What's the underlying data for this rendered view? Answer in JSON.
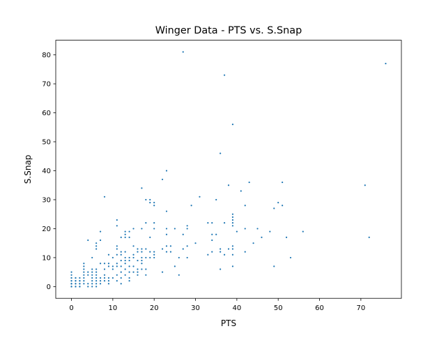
{
  "chart_data": {
    "type": "scatter",
    "title": "Winger Data - PTS vs. S.Snap",
    "xlabel": "PTS",
    "ylabel": "S.Snap",
    "xlim": [
      -3.8,
      79.8
    ],
    "ylim": [
      -4.05,
      85.05
    ],
    "xticks": [
      0,
      10,
      20,
      30,
      40,
      50,
      60,
      70
    ],
    "yticks": [
      0,
      10,
      20,
      30,
      40,
      50,
      60,
      70,
      80
    ],
    "grid": false,
    "marker_color": "#1f77b4",
    "points": [
      [
        0,
        0
      ],
      [
        0,
        0
      ],
      [
        0,
        0
      ],
      [
        0,
        1
      ],
      [
        0,
        1
      ],
      [
        0,
        1
      ],
      [
        0,
        2
      ],
      [
        0,
        2
      ],
      [
        0,
        3
      ],
      [
        0,
        3
      ],
      [
        0,
        4
      ],
      [
        0,
        5
      ],
      [
        1,
        0
      ],
      [
        1,
        0
      ],
      [
        1,
        1
      ],
      [
        1,
        1
      ],
      [
        1,
        2
      ],
      [
        1,
        2
      ],
      [
        1,
        3
      ],
      [
        1,
        3
      ],
      [
        2,
        0
      ],
      [
        2,
        0
      ],
      [
        2,
        1
      ],
      [
        2,
        1
      ],
      [
        2,
        2
      ],
      [
        2,
        2
      ],
      [
        2,
        3
      ],
      [
        3,
        1
      ],
      [
        3,
        2
      ],
      [
        3,
        3
      ],
      [
        3,
        4
      ],
      [
        3,
        5
      ],
      [
        3,
        6
      ],
      [
        3,
        7
      ],
      [
        3,
        8
      ],
      [
        4,
        0
      ],
      [
        4,
        1
      ],
      [
        4,
        4
      ],
      [
        4,
        5
      ],
      [
        4,
        16
      ],
      [
        5,
        0
      ],
      [
        5,
        1
      ],
      [
        5,
        2
      ],
      [
        5,
        3
      ],
      [
        5,
        4
      ],
      [
        5,
        5
      ],
      [
        5,
        6
      ],
      [
        5,
        10
      ],
      [
        6,
        0
      ],
      [
        6,
        1
      ],
      [
        6,
        2
      ],
      [
        6,
        3
      ],
      [
        6,
        4
      ],
      [
        6,
        5
      ],
      [
        6,
        6
      ],
      [
        6,
        13
      ],
      [
        6,
        14
      ],
      [
        6,
        15
      ],
      [
        7,
        1
      ],
      [
        7,
        2
      ],
      [
        7,
        3
      ],
      [
        7,
        8
      ],
      [
        7,
        16
      ],
      [
        7,
        19
      ],
      [
        8,
        2
      ],
      [
        8,
        3
      ],
      [
        8,
        4
      ],
      [
        8,
        6
      ],
      [
        8,
        8
      ],
      [
        8,
        31
      ],
      [
        9,
        1
      ],
      [
        9,
        2
      ],
      [
        9,
        3
      ],
      [
        9,
        7
      ],
      [
        9,
        8
      ],
      [
        9,
        11
      ],
      [
        10,
        3
      ],
      [
        10,
        6
      ],
      [
        10,
        7
      ],
      [
        10,
        10
      ],
      [
        11,
        2
      ],
      [
        11,
        4
      ],
      [
        11,
        7
      ],
      [
        11,
        8
      ],
      [
        11,
        11
      ],
      [
        11,
        13
      ],
      [
        11,
        14
      ],
      [
        11,
        21
      ],
      [
        11,
        23
      ],
      [
        12,
        1
      ],
      [
        12,
        3
      ],
      [
        12,
        5
      ],
      [
        12,
        7
      ],
      [
        12,
        9
      ],
      [
        12,
        11
      ],
      [
        12,
        12
      ],
      [
        12,
        17
      ],
      [
        13,
        4
      ],
      [
        13,
        6
      ],
      [
        13,
        8
      ],
      [
        13,
        9
      ],
      [
        13,
        10
      ],
      [
        13,
        12
      ],
      [
        13,
        17
      ],
      [
        13,
        18
      ],
      [
        13,
        19
      ],
      [
        14,
        2
      ],
      [
        14,
        3
      ],
      [
        14,
        5
      ],
      [
        14,
        7
      ],
      [
        14,
        9
      ],
      [
        14,
        10
      ],
      [
        14,
        17
      ],
      [
        14,
        19
      ],
      [
        15,
        5
      ],
      [
        15,
        7
      ],
      [
        15,
        10
      ],
      [
        15,
        11
      ],
      [
        15,
        14
      ],
      [
        15,
        20
      ],
      [
        16,
        4
      ],
      [
        16,
        5
      ],
      [
        16,
        6
      ],
      [
        16,
        9
      ],
      [
        16,
        12
      ],
      [
        16,
        13
      ],
      [
        17,
        6
      ],
      [
        17,
        8
      ],
      [
        17,
        9
      ],
      [
        17,
        10
      ],
      [
        17,
        12
      ],
      [
        17,
        13
      ],
      [
        17,
        20
      ],
      [
        17,
        34
      ],
      [
        18,
        4
      ],
      [
        18,
        6
      ],
      [
        18,
        10
      ],
      [
        18,
        13
      ],
      [
        18,
        22
      ],
      [
        18,
        30
      ],
      [
        19,
        10
      ],
      [
        19,
        12
      ],
      [
        19,
        17
      ],
      [
        19,
        29
      ],
      [
        19,
        30
      ],
      [
        20,
        10
      ],
      [
        20,
        11
      ],
      [
        20,
        12
      ],
      [
        20,
        20
      ],
      [
        20,
        22
      ],
      [
        20,
        28
      ],
      [
        20,
        29
      ],
      [
        22,
        5
      ],
      [
        22,
        13
      ],
      [
        22,
        37
      ],
      [
        23,
        12
      ],
      [
        23,
        14
      ],
      [
        23,
        18
      ],
      [
        23,
        20
      ],
      [
        23,
        26
      ],
      [
        23,
        40
      ],
      [
        24,
        12
      ],
      [
        24,
        14
      ],
      [
        25,
        7
      ],
      [
        25,
        20
      ],
      [
        26,
        4
      ],
      [
        26,
        10
      ],
      [
        27,
        81
      ],
      [
        27,
        13
      ],
      [
        27,
        18
      ],
      [
        28,
        10
      ],
      [
        28,
        14
      ],
      [
        28,
        20
      ],
      [
        28,
        21
      ],
      [
        29,
        28
      ],
      [
        30,
        15
      ],
      [
        31,
        31
      ],
      [
        33,
        11
      ],
      [
        33,
        22
      ],
      [
        34,
        12
      ],
      [
        34,
        16
      ],
      [
        34,
        18
      ],
      [
        34,
        22
      ],
      [
        35,
        18
      ],
      [
        35,
        30
      ],
      [
        36,
        6
      ],
      [
        36,
        12
      ],
      [
        36,
        13
      ],
      [
        36,
        46
      ],
      [
        37,
        11
      ],
      [
        37,
        22
      ],
      [
        37,
        73
      ],
      [
        38,
        13
      ],
      [
        38,
        35
      ],
      [
        39,
        7
      ],
      [
        39,
        11
      ],
      [
        39,
        13
      ],
      [
        39,
        14
      ],
      [
        39,
        21
      ],
      [
        39,
        22
      ],
      [
        39,
        23
      ],
      [
        39,
        24
      ],
      [
        39,
        25
      ],
      [
        39,
        56
      ],
      [
        40,
        19
      ],
      [
        41,
        33
      ],
      [
        42,
        28
      ],
      [
        42,
        20
      ],
      [
        42,
        12
      ],
      [
        43,
        36
      ],
      [
        44,
        15
      ],
      [
        45,
        20
      ],
      [
        46,
        17
      ],
      [
        48,
        19
      ],
      [
        49,
        7
      ],
      [
        49,
        27
      ],
      [
        50,
        29
      ],
      [
        51,
        28
      ],
      [
        51,
        36
      ],
      [
        52,
        17
      ],
      [
        53,
        10
      ],
      [
        56,
        19
      ],
      [
        71,
        35
      ],
      [
        72,
        17
      ],
      [
        76,
        77
      ]
    ]
  }
}
